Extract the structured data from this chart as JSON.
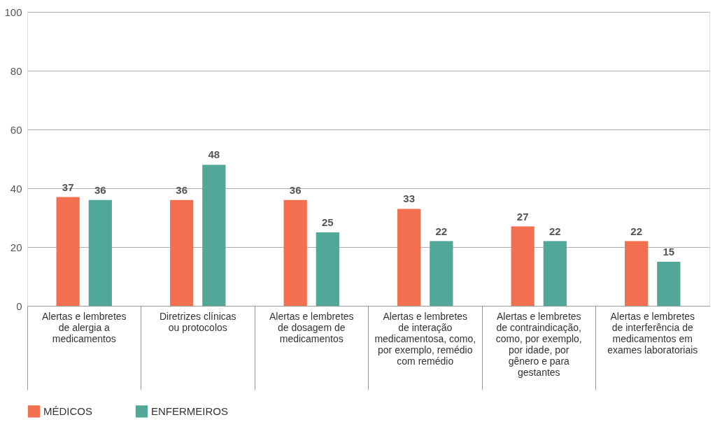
{
  "chart_data": {
    "type": "bar",
    "categories": [
      "Alertas e lembretes de alergia a medicamentos",
      "Diretrizes clínicas ou protocolos",
      "Alertas e lembretes de dosagem de medicamentos",
      "Alertas e lembretes de interação medicamentosa, como, por exemplo, remédio com remédio",
      "Alertas e lembretes de contraindicação, como, por exemplo, por idade, por gênero e para gestantes",
      "Alertas e lembretes de interferência de medicamentos em exames laboratoriais"
    ],
    "series": [
      {
        "name": "MÉDICOS",
        "color": "#f26f50",
        "values": [
          37,
          36,
          36,
          33,
          27,
          22
        ]
      },
      {
        "name": "ENFERMEIROS",
        "color": "#52a898",
        "values": [
          36,
          48,
          25,
          22,
          22,
          15
        ]
      }
    ],
    "ylim": [
      0,
      100
    ],
    "yticks": [
      0,
      20,
      40,
      60,
      80,
      100
    ],
    "grid": "y",
    "legend": "bottom",
    "data_labels": true
  }
}
